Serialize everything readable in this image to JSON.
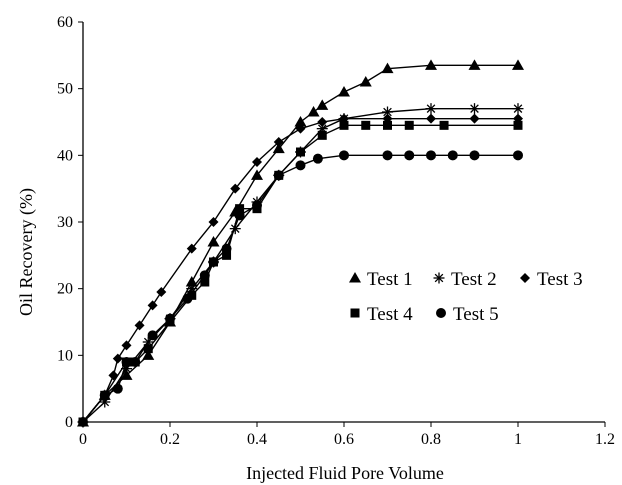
{
  "chart_data": {
    "type": "line",
    "xlabel": "Injected Fluid Pore Volume",
    "ylabel": "Oil Recovery (%)",
    "xlim": [
      0,
      1.2
    ],
    "ylim": [
      0,
      60
    ],
    "xticks": [
      0,
      0.2,
      0.4,
      0.6,
      0.8,
      1,
      1.2
    ],
    "xtick_labels": [
      "0",
      "0.2",
      "0.4",
      "0.6",
      "0.8",
      "1",
      "1.2"
    ],
    "yticks": [
      0,
      10,
      20,
      30,
      40,
      50,
      60
    ],
    "ytick_labels": [
      "0",
      "10",
      "20",
      "30",
      "40",
      "50",
      "60"
    ],
    "grid": false,
    "legend_position": "center-right",
    "series": [
      {
        "name": "Test 1",
        "marker": "triangle",
        "x": [
          0,
          0.05,
          0.1,
          0.15,
          0.2,
          0.25,
          0.3,
          0.35,
          0.4,
          0.45,
          0.5,
          0.53,
          0.55,
          0.6,
          0.65,
          0.7,
          0.8,
          0.9,
          1.0
        ],
        "y": [
          0,
          4,
          7,
          10,
          15,
          21,
          27,
          31.5,
          37,
          41,
          45,
          46.5,
          47.5,
          49.5,
          51,
          53,
          53.5,
          53.5,
          53.5
        ]
      },
      {
        "name": "Test 2",
        "marker": "asterisk",
        "x": [
          0,
          0.05,
          0.1,
          0.15,
          0.2,
          0.25,
          0.3,
          0.35,
          0.4,
          0.45,
          0.5,
          0.55,
          0.6,
          0.7,
          0.8,
          0.9,
          1.0
        ],
        "y": [
          0,
          3,
          8,
          12,
          15.5,
          20,
          24,
          29,
          33,
          37,
          40.5,
          44,
          45.5,
          46.5,
          47,
          47,
          47
        ]
      },
      {
        "name": "Test 3",
        "marker": "diamond",
        "x": [
          0,
          0.05,
          0.07,
          0.08,
          0.1,
          0.13,
          0.16,
          0.18,
          0.25,
          0.3,
          0.35,
          0.4,
          0.45,
          0.5,
          0.55,
          0.6,
          0.7,
          0.8,
          0.9,
          1.0
        ],
        "y": [
          0,
          4,
          7,
          9.5,
          11.5,
          14.5,
          17.5,
          19.5,
          26,
          30,
          35,
          39,
          42,
          44,
          45,
          45.5,
          45.5,
          45.5,
          45.5,
          45.5
        ]
      },
      {
        "name": "Test 4",
        "marker": "square",
        "x": [
          0,
          0.05,
          0.1,
          0.12,
          0.15,
          0.2,
          0.25,
          0.28,
          0.3,
          0.33,
          0.36,
          0.4,
          0.45,
          0.5,
          0.55,
          0.6,
          0.65,
          0.7,
          0.75,
          0.83,
          1.0
        ],
        "y": [
          0,
          4,
          9,
          9,
          11,
          15,
          19,
          21,
          24,
          25,
          32,
          32,
          37,
          40.5,
          43,
          44.5,
          44.5,
          44.5,
          44.5,
          44.5,
          44.5
        ]
      },
      {
        "name": "Test 5",
        "marker": "circle",
        "x": [
          0,
          0.05,
          0.08,
          0.1,
          0.12,
          0.16,
          0.2,
          0.24,
          0.28,
          0.3,
          0.33,
          0.36,
          0.4,
          0.45,
          0.5,
          0.54,
          0.6,
          0.7,
          0.75,
          0.8,
          0.85,
          0.9,
          1.0
        ],
        "y": [
          0,
          4,
          5,
          9,
          9,
          13,
          15.5,
          18.5,
          22,
          24,
          26,
          31,
          32.5,
          37,
          38.5,
          39.5,
          40,
          40,
          40,
          40,
          40,
          40,
          40
        ]
      }
    ]
  }
}
